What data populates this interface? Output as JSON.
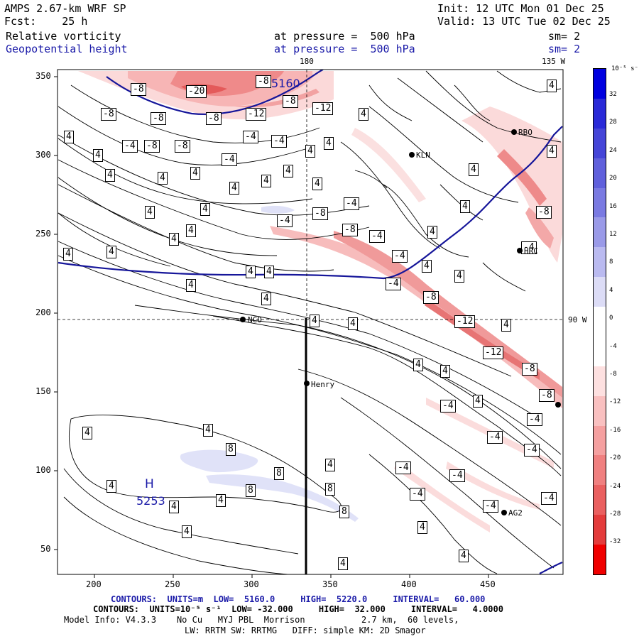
{
  "header": {
    "model_title": "AMPS 2.67-km WRF SP",
    "init": "Init: 12 UTC Mon 01 Dec 25",
    "forecast": "Fcst:    25 h",
    "valid": "Valid: 13 UTC Tue 02 Dec 25",
    "field1": "Relative vorticity",
    "field1_level": "at pressure =  500 hPa",
    "field1_sm": "sm= 2",
    "field2": "Geopotential height",
    "field2_level": "at pressure =  500 hPa",
    "field2_sm": "sm= 2"
  },
  "map": {
    "x_ticks": [
      "200",
      "250",
      "300",
      "350",
      "400",
      "450"
    ],
    "y_ticks": [
      "350",
      "300",
      "250",
      "200",
      "150",
      "100",
      "50"
    ],
    "meridian_180": "180",
    "meridian_135": "135 W",
    "parallel_90": "90 W",
    "stations": [
      {
        "name": "NCO"
      },
      {
        "name": "Henry"
      },
      {
        "name": "KLN"
      },
      {
        "name": "RBO"
      },
      {
        "name": "HRC"
      },
      {
        "name": "AG2"
      }
    ],
    "high_center": {
      "label": "H",
      "value": "5253"
    },
    "height_label": "5160",
    "contour_labels": [
      "-20",
      "-12",
      "-8",
      "-4",
      "4",
      "8"
    ]
  },
  "colorbar": {
    "unit": "10⁻⁵ s⁻¹",
    "ticks": [
      "32",
      "28",
      "24",
      "20",
      "16",
      "12",
      "8",
      "4",
      "0",
      "-4",
      "-8",
      "-12",
      "-16",
      "-20",
      "-24",
      "-28",
      "-32"
    ],
    "colors": [
      "#0000e0",
      "#2a2ad8",
      "#4545d8",
      "#6060dc",
      "#7a7ae2",
      "#9a9ae8",
      "#babaf0",
      "#dcdcf6",
      "#ffffff",
      "#ffffff",
      "#fde0e0",
      "#f9c0c0",
      "#f5a0a0",
      "#f08080",
      "#ea6060",
      "#e43c3c",
      "#f00000"
    ]
  },
  "footer": {
    "contours1": "CONTOURS:  UNITS=m  LOW=  5160.0     HIGH=  5220.0     INTERVAL=   60.000",
    "contours2": "CONTOURS:  UNITS=10⁻⁵ s⁻¹  LOW= -32.000     HIGH=  32.000     INTERVAL=   4.0000",
    "model_info": "Model Info: V4.3.3    No Cu   MYJ PBL  Morrison           2.7 km,  60 levels,",
    "physics": "LW: RRTM SW: RRTMG   DIFF: simple KM: 2D Smagor"
  }
}
